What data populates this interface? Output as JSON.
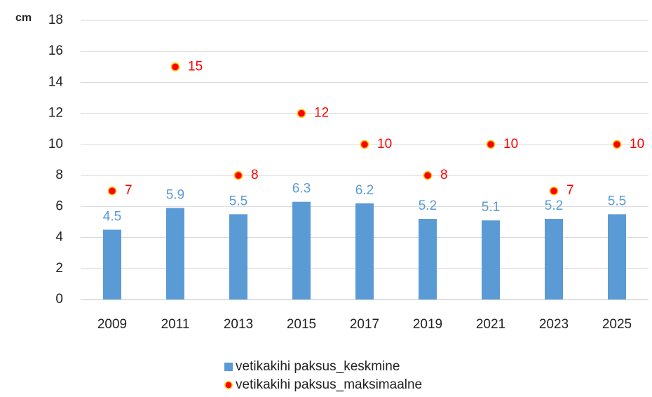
{
  "chart_data": {
    "type": "bar",
    "y_label": "cm",
    "categories": [
      "2009",
      "2011",
      "2013",
      "2015",
      "2017",
      "2019",
      "2021",
      "2023",
      "2025"
    ],
    "series": [
      {
        "name": "vetikakihi paksus_keskmine",
        "type": "bar",
        "color": "#5b9bd5",
        "values": [
          4.5,
          5.9,
          5.5,
          6.3,
          6.2,
          5.2,
          5.1,
          5.2,
          5.5
        ]
      },
      {
        "name": "vetikakihi paksus_maksimaalne",
        "type": "scatter",
        "color": "#ff0000",
        "edge_color": "#ffc000",
        "values": [
          7,
          15,
          8,
          12,
          10,
          8,
          10,
          7,
          10
        ]
      }
    ],
    "ylim": [
      0,
      18
    ],
    "yticks": [
      0,
      2,
      4,
      6,
      8,
      10,
      12,
      14,
      16,
      18
    ],
    "grid": true,
    "legend": "bottom"
  }
}
